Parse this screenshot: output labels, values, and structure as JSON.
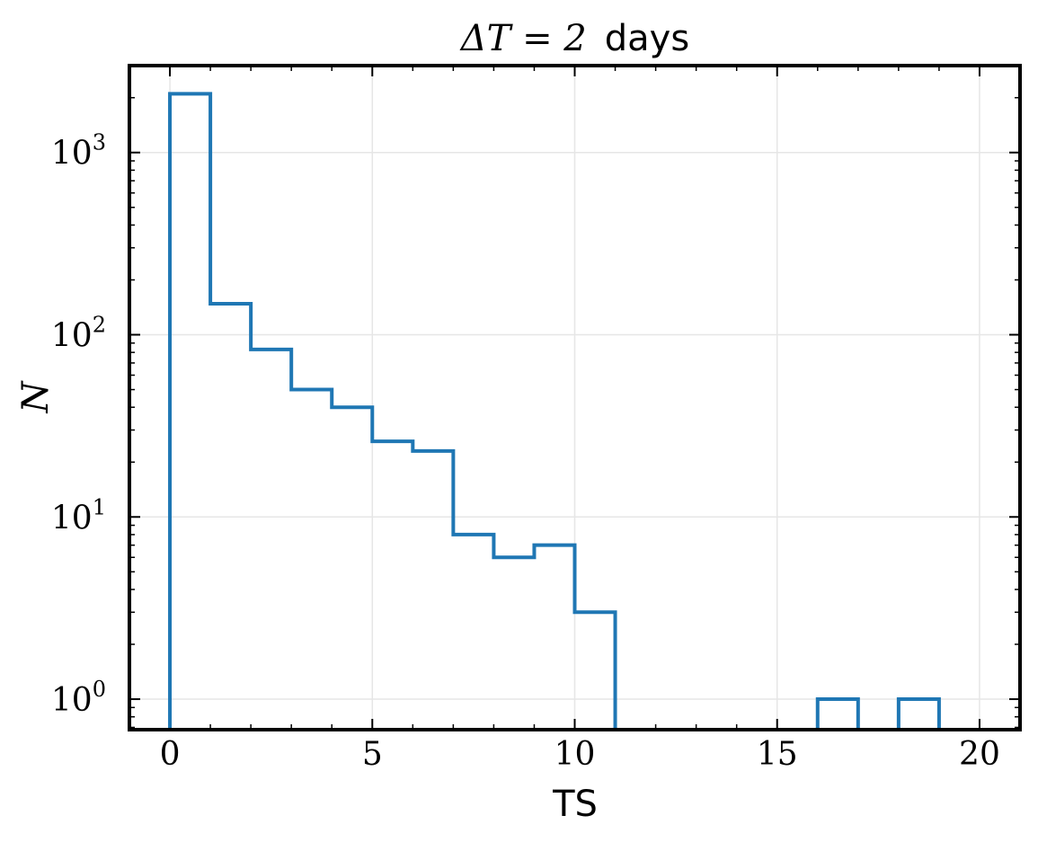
{
  "chart_data": {
    "type": "histogram",
    "title_math": "ΔT = 2",
    "title_text": "days",
    "xlabel": "TS",
    "ylabel": "N",
    "xlim": [
      -1,
      21
    ],
    "ylim": [
      0.68,
      3000
    ],
    "yscale": "log",
    "grid": true,
    "line_color": "#1f77b4",
    "bin_edges": [
      0,
      1,
      2,
      3,
      4,
      5,
      6,
      7,
      8,
      9,
      10,
      11,
      12,
      13,
      14,
      15,
      16,
      17,
      18,
      19
    ],
    "counts": [
      2100,
      148,
      83,
      50,
      40,
      26,
      23,
      8,
      6,
      7,
      3,
      0,
      0,
      0,
      0,
      0,
      1,
      0,
      1
    ],
    "x_ticks": [
      {
        "value": 0,
        "label": "0"
      },
      {
        "value": 5,
        "label": "5"
      },
      {
        "value": 10,
        "label": "10"
      },
      {
        "value": 15,
        "label": "15"
      },
      {
        "value": 20,
        "label": "20"
      }
    ],
    "y_ticks": [
      {
        "value": 1,
        "base": "10",
        "exp": "0"
      },
      {
        "value": 10,
        "base": "10",
        "exp": "1"
      },
      {
        "value": 100,
        "base": "10",
        "exp": "2"
      },
      {
        "value": 1000,
        "base": "10",
        "exp": "3"
      }
    ]
  }
}
